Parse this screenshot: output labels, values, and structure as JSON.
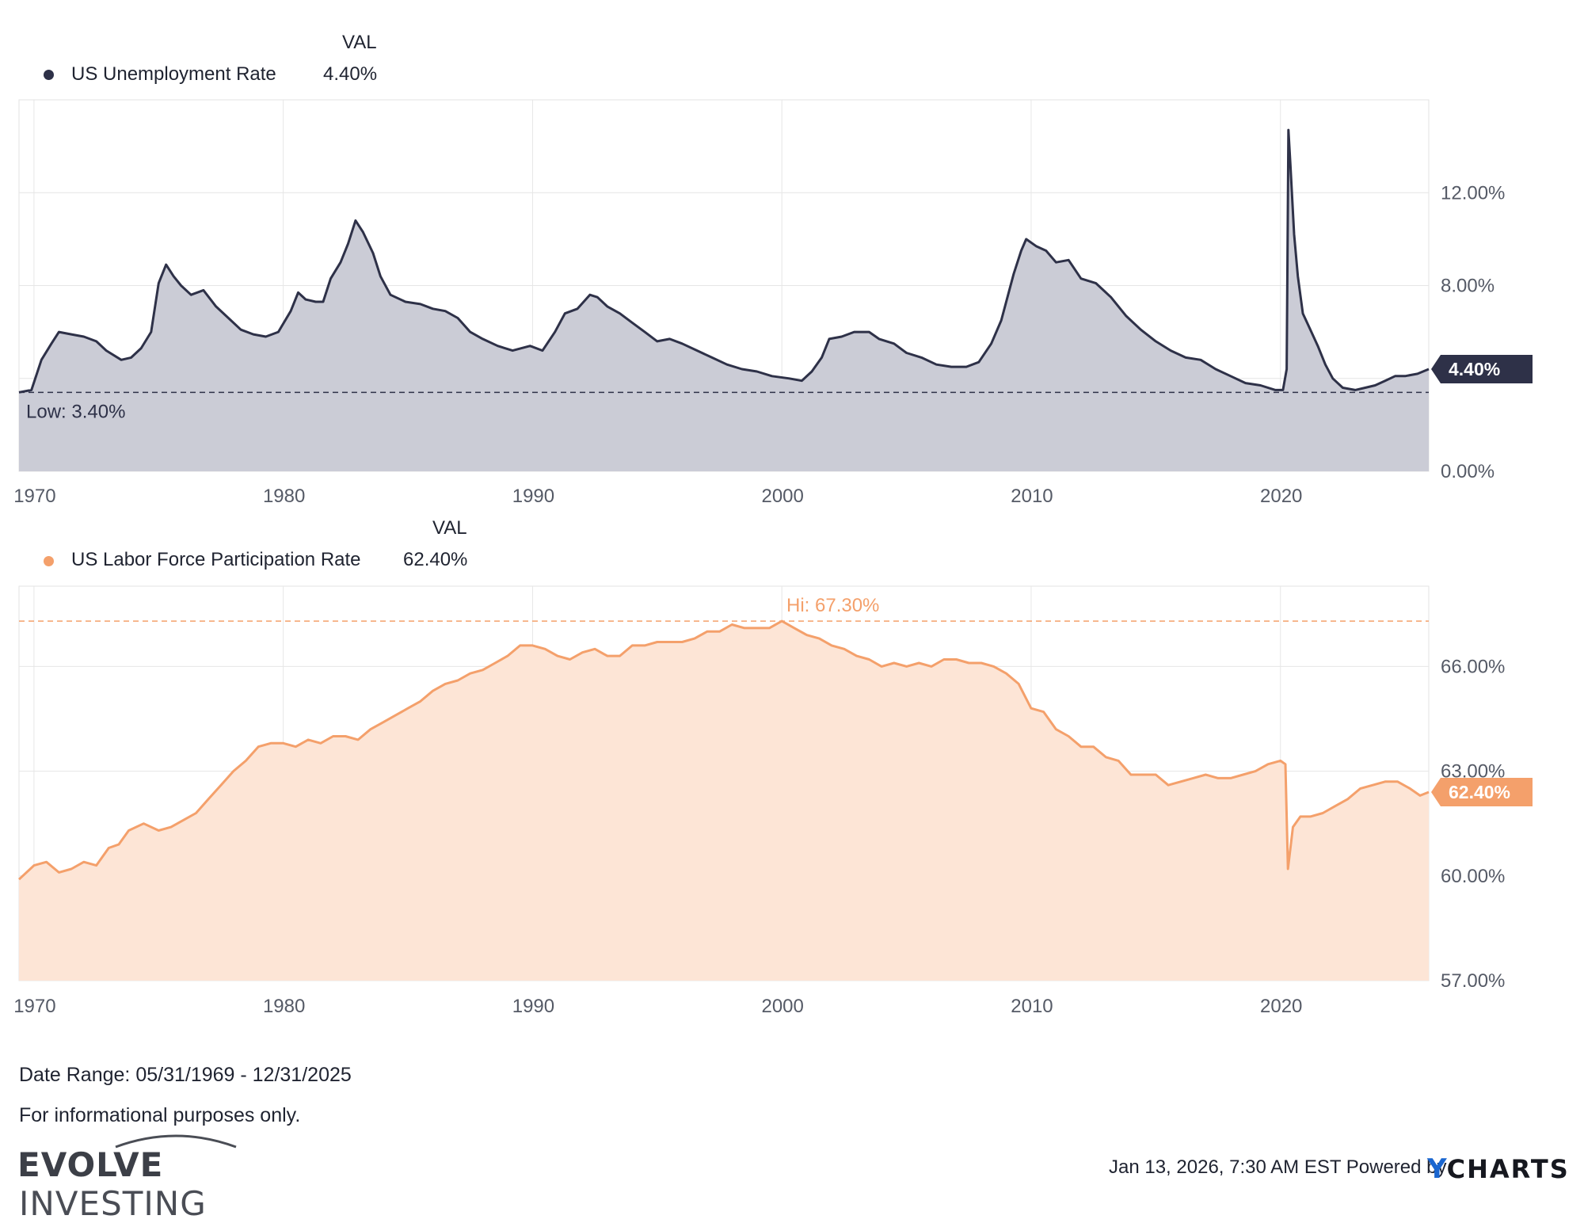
{
  "legend1": {
    "header": "VAL",
    "name": "US Unemployment Rate",
    "value": "4.40%",
    "color": "#2e3148"
  },
  "legend2": {
    "header": "VAL",
    "name": "US Labor Force Participation Rate",
    "value": "62.40%",
    "color": "#f4a06b"
  },
  "footer": {
    "date_range": "Date Range: 05/31/1969 - 12/31/2025",
    "disclaimer": "For informational purposes only.",
    "brand_bold": "EVOLVE",
    "brand_light": "INVESTING",
    "timestamp": "Jan 13, 2026, 7:30 AM EST Powered by",
    "powered_y": "Y",
    "powered_rest": "CHARTS"
  },
  "chart_data": [
    {
      "type": "area",
      "title": "US Unemployment Rate",
      "line_color": "#2e3148",
      "fill_color": "#cbccd6",
      "x_range": [
        1969.4,
        2025.95
      ],
      "ylim": [
        0,
        16
      ],
      "y_ticks": [
        0,
        4,
        8,
        12
      ],
      "y_tick_labels": [
        "0.00%",
        "",
        "8.00%",
        "12.00%"
      ],
      "x_ticks": [
        1970,
        1980,
        1990,
        2000,
        2010,
        2020
      ],
      "x_tick_labels": [
        "1970",
        "1980",
        "1990",
        "2000",
        "2010",
        "2020"
      ],
      "last_value": 4.4,
      "last_label": "4.40%",
      "low_value": 3.4,
      "low_label": "Low: 3.40%",
      "series": [
        {
          "name": "US Unemployment Rate",
          "x": [
            1969.4,
            1969.9,
            1970.3,
            1970.7,
            1971.0,
            1971.5,
            1972.0,
            1972.5,
            1972.9,
            1973.5,
            1973.9,
            1974.3,
            1974.7,
            1975.0,
            1975.3,
            1975.6,
            1975.9,
            1976.3,
            1976.8,
            1977.3,
            1977.8,
            1978.3,
            1978.8,
            1979.3,
            1979.8,
            1980.3,
            1980.6,
            1980.9,
            1981.3,
            1981.6,
            1981.9,
            1982.3,
            1982.6,
            1982.9,
            1983.2,
            1983.6,
            1983.9,
            1984.3,
            1984.9,
            1985.5,
            1986.0,
            1986.5,
            1987.0,
            1987.5,
            1988.0,
            1988.6,
            1989.2,
            1989.9,
            1990.4,
            1990.9,
            1991.3,
            1991.8,
            1992.3,
            1992.6,
            1993.0,
            1993.5,
            1994.0,
            1994.5,
            1995.0,
            1995.5,
            1996.0,
            1996.6,
            1997.2,
            1997.8,
            1998.4,
            1999.0,
            1999.6,
            2000.3,
            2000.8,
            2001.2,
            2001.6,
            2001.9,
            2002.4,
            2002.9,
            2003.5,
            2003.9,
            2004.5,
            2005.0,
            2005.6,
            2006.2,
            2006.8,
            2007.4,
            2007.9,
            2008.4,
            2008.8,
            2009.3,
            2009.6,
            2009.8,
            2010.2,
            2010.6,
            2011.0,
            2011.5,
            2012.0,
            2012.6,
            2013.2,
            2013.8,
            2014.4,
            2015.0,
            2015.6,
            2016.2,
            2016.8,
            2017.4,
            2018.0,
            2018.6,
            2019.2,
            2019.8,
            2020.1,
            2020.25,
            2020.32,
            2020.4,
            2020.55,
            2020.7,
            2020.9,
            2021.2,
            2021.5,
            2021.8,
            2022.1,
            2022.5,
            2023.0,
            2023.4,
            2023.8,
            2024.2,
            2024.6,
            2025.0,
            2025.5,
            2025.95
          ],
          "values": [
            3.4,
            3.5,
            4.8,
            5.5,
            6.0,
            5.9,
            5.8,
            5.6,
            5.2,
            4.8,
            4.9,
            5.3,
            6.0,
            8.1,
            8.9,
            8.4,
            8.0,
            7.6,
            7.8,
            7.1,
            6.6,
            6.1,
            5.9,
            5.8,
            6.0,
            6.9,
            7.7,
            7.4,
            7.3,
            7.3,
            8.3,
            9.0,
            9.8,
            10.8,
            10.3,
            9.4,
            8.4,
            7.6,
            7.3,
            7.2,
            7.0,
            6.9,
            6.6,
            6.0,
            5.7,
            5.4,
            5.2,
            5.4,
            5.2,
            6.0,
            6.8,
            7.0,
            7.6,
            7.5,
            7.1,
            6.8,
            6.4,
            6.0,
            5.6,
            5.7,
            5.5,
            5.2,
            4.9,
            4.6,
            4.4,
            4.3,
            4.1,
            4.0,
            3.9,
            4.3,
            4.9,
            5.7,
            5.8,
            6.0,
            6.0,
            5.7,
            5.5,
            5.1,
            4.9,
            4.6,
            4.5,
            4.5,
            4.7,
            5.5,
            6.5,
            8.5,
            9.5,
            10.0,
            9.7,
            9.5,
            9.0,
            9.1,
            8.3,
            8.1,
            7.5,
            6.7,
            6.1,
            5.6,
            5.2,
            4.9,
            4.8,
            4.4,
            4.1,
            3.8,
            3.7,
            3.5,
            3.5,
            4.4,
            14.7,
            13.2,
            10.2,
            8.4,
            6.8,
            6.1,
            5.4,
            4.6,
            4.0,
            3.6,
            3.5,
            3.6,
            3.7,
            3.9,
            4.1,
            4.1,
            4.2,
            4.4
          ]
        }
      ]
    },
    {
      "type": "area",
      "title": "US Labor Force Participation Rate",
      "line_color": "#f4a06b",
      "fill_color": "#fde5d6",
      "x_range": [
        1969.4,
        2025.95
      ],
      "ylim": [
        57,
        68.3
      ],
      "y_ticks": [
        57,
        60,
        63,
        66
      ],
      "y_tick_labels": [
        "57.00%",
        "60.00%",
        "63.00%",
        "66.00%"
      ],
      "x_ticks": [
        1970,
        1980,
        1990,
        2000,
        2010,
        2020
      ],
      "x_tick_labels": [
        "1970",
        "1980",
        "1990",
        "2000",
        "2010",
        "2020"
      ],
      "last_value": 62.4,
      "last_label": "62.40%",
      "high_value": 67.3,
      "high_label": "Hi: 67.30%",
      "series": [
        {
          "name": "US Labor Force Participation Rate",
          "x": [
            1969.4,
            1970.0,
            1970.5,
            1971.0,
            1971.5,
            1972.0,
            1972.5,
            1973.0,
            1973.4,
            1973.8,
            1974.4,
            1975.0,
            1975.5,
            1976.0,
            1976.5,
            1977.0,
            1977.5,
            1978.0,
            1978.5,
            1979.0,
            1979.5,
            1980.0,
            1980.5,
            1981.0,
            1981.5,
            1982.0,
            1982.5,
            1983.0,
            1983.5,
            1984.0,
            1984.5,
            1985.0,
            1985.5,
            1986.0,
            1986.5,
            1987.0,
            1987.5,
            1988.0,
            1988.5,
            1989.0,
            1989.5,
            1990.0,
            1990.5,
            1991.0,
            1991.5,
            1992.0,
            1992.5,
            1993.0,
            1993.5,
            1994.0,
            1994.5,
            1995.0,
            1995.5,
            1996.0,
            1996.5,
            1997.0,
            1997.5,
            1998.0,
            1998.5,
            1999.0,
            1999.5,
            2000.0,
            2000.5,
            2001.0,
            2001.5,
            2002.0,
            2002.5,
            2003.0,
            2003.5,
            2004.0,
            2004.5,
            2005.0,
            2005.5,
            2006.0,
            2006.5,
            2007.0,
            2007.5,
            2008.0,
            2008.5,
            2009.0,
            2009.5,
            2010.0,
            2010.5,
            2011.0,
            2011.5,
            2012.0,
            2012.5,
            2013.0,
            2013.5,
            2014.0,
            2014.5,
            2015.0,
            2015.5,
            2016.0,
            2016.5,
            2017.0,
            2017.5,
            2018.0,
            2018.5,
            2019.0,
            2019.5,
            2020.0,
            2020.2,
            2020.3,
            2020.5,
            2020.8,
            2021.2,
            2021.7,
            2022.2,
            2022.7,
            2023.2,
            2023.7,
            2024.2,
            2024.7,
            2025.2,
            2025.6,
            2025.95
          ],
          "values": [
            59.9,
            60.3,
            60.4,
            60.1,
            60.2,
            60.4,
            60.3,
            60.8,
            60.9,
            61.3,
            61.5,
            61.3,
            61.4,
            61.6,
            61.8,
            62.2,
            62.6,
            63.0,
            63.3,
            63.7,
            63.8,
            63.8,
            63.7,
            63.9,
            63.8,
            64.0,
            64.0,
            63.9,
            64.2,
            64.4,
            64.6,
            64.8,
            65.0,
            65.3,
            65.5,
            65.6,
            65.8,
            65.9,
            66.1,
            66.3,
            66.6,
            66.6,
            66.5,
            66.3,
            66.2,
            66.4,
            66.5,
            66.3,
            66.3,
            66.6,
            66.6,
            66.7,
            66.7,
            66.7,
            66.8,
            67.0,
            67.0,
            67.2,
            67.1,
            67.1,
            67.1,
            67.3,
            67.1,
            66.9,
            66.8,
            66.6,
            66.5,
            66.3,
            66.2,
            66.0,
            66.1,
            66.0,
            66.1,
            66.0,
            66.2,
            66.2,
            66.1,
            66.1,
            66.0,
            65.8,
            65.5,
            64.8,
            64.7,
            64.2,
            64.0,
            63.7,
            63.7,
            63.4,
            63.3,
            62.9,
            62.9,
            62.9,
            62.6,
            62.7,
            62.8,
            62.9,
            62.8,
            62.8,
            62.9,
            63.0,
            63.2,
            63.3,
            63.2,
            60.2,
            61.4,
            61.7,
            61.7,
            61.8,
            62.0,
            62.2,
            62.5,
            62.6,
            62.7,
            62.7,
            62.5,
            62.3,
            62.4
          ]
        }
      ]
    }
  ]
}
